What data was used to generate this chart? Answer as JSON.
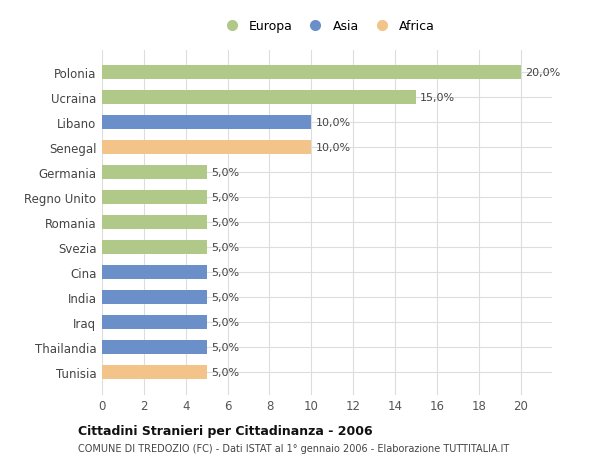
{
  "categories": [
    "Tunisia",
    "Thailandia",
    "Iraq",
    "India",
    "Cina",
    "Svezia",
    "Romania",
    "Regno Unito",
    "Germania",
    "Senegal",
    "Libano",
    "Ucraina",
    "Polonia"
  ],
  "values": [
    5.0,
    5.0,
    5.0,
    5.0,
    5.0,
    5.0,
    5.0,
    5.0,
    5.0,
    10.0,
    10.0,
    15.0,
    20.0
  ],
  "colors": [
    "#f2c48a",
    "#6b8fc9",
    "#6b8fc9",
    "#6b8fc9",
    "#6b8fc9",
    "#b0c888",
    "#b0c888",
    "#b0c888",
    "#b0c888",
    "#f2c48a",
    "#6b8fc9",
    "#b0c888",
    "#b0c888"
  ],
  "legend_labels": [
    "Europa",
    "Asia",
    "Africa"
  ],
  "legend_colors": [
    "#b0c888",
    "#6b8fc9",
    "#f2c48a"
  ],
  "bar_labels": [
    "5,0%",
    "5,0%",
    "5,0%",
    "5,0%",
    "5,0%",
    "5,0%",
    "5,0%",
    "5,0%",
    "5,0%",
    "10,0%",
    "10,0%",
    "15,0%",
    "20,0%"
  ],
  "xlim": [
    0,
    21.5
  ],
  "xticks": [
    0,
    2,
    4,
    6,
    8,
    10,
    12,
    14,
    16,
    18,
    20
  ],
  "title": "Cittadini Stranieri per Cittadinanza - 2006",
  "subtitle": "COMUNE DI TREDOZIO (FC) - Dati ISTAT al 1° gennaio 2006 - Elaborazione TUTTITALIA.IT",
  "background_color": "#ffffff",
  "grid_color": "#dddddd"
}
